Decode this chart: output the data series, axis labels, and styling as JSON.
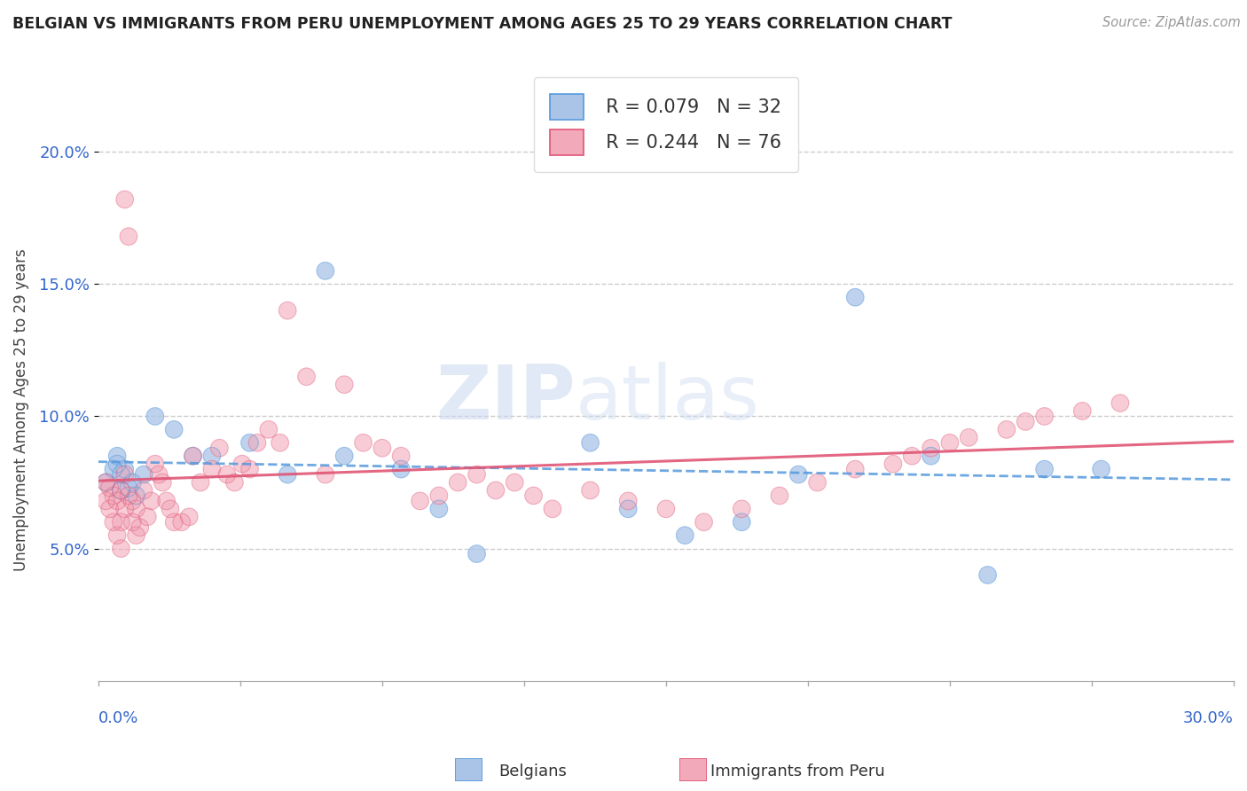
{
  "title": "BELGIAN VS IMMIGRANTS FROM PERU UNEMPLOYMENT AMONG AGES 25 TO 29 YEARS CORRELATION CHART",
  "source": "Source: ZipAtlas.com",
  "ylabel": "Unemployment Among Ages 25 to 29 years",
  "xlim": [
    0.0,
    0.3
  ],
  "ylim": [
    0.0,
    0.205
  ],
  "ytick_vals": [
    0.05,
    0.1,
    0.15,
    0.2
  ],
  "ytick_labels": [
    "5.0%",
    "10.0%",
    "15.0%",
    "20.0%"
  ],
  "legend_r1": "R = 0.079",
  "legend_n1": "N = 32",
  "legend_r2": "R = 0.244",
  "legend_n2": "N = 76",
  "legend_label1": "Belgians",
  "legend_label2": "Immigrants from Peru",
  "belgians_color": "#aac4e8",
  "peru_color": "#f2aabb",
  "trend1_color": "#5599dd",
  "trend2_color": "#e05575",
  "trend1_dashed": true,
  "trend2_dashed": false,
  "watermark_top": "ZIP",
  "watermark_bottom": "atlas",
  "belgians_x": [
    0.002,
    0.004,
    0.005,
    0.005,
    0.006,
    0.006,
    0.007,
    0.008,
    0.009,
    0.01,
    0.012,
    0.015,
    0.02,
    0.025,
    0.03,
    0.04,
    0.05,
    0.06,
    0.065,
    0.08,
    0.09,
    0.1,
    0.13,
    0.14,
    0.155,
    0.17,
    0.185,
    0.2,
    0.22,
    0.235,
    0.25,
    0.265
  ],
  "belgians_y": [
    0.075,
    0.08,
    0.082,
    0.085,
    0.078,
    0.072,
    0.08,
    0.073,
    0.075,
    0.07,
    0.078,
    0.1,
    0.095,
    0.085,
    0.085,
    0.09,
    0.078,
    0.155,
    0.085,
    0.08,
    0.065,
    0.048,
    0.09,
    0.065,
    0.055,
    0.06,
    0.078,
    0.145,
    0.085,
    0.04,
    0.08,
    0.08
  ],
  "peru_x": [
    0.002,
    0.002,
    0.003,
    0.003,
    0.004,
    0.004,
    0.005,
    0.005,
    0.006,
    0.006,
    0.006,
    0.007,
    0.007,
    0.007,
    0.008,
    0.008,
    0.009,
    0.009,
    0.01,
    0.01,
    0.011,
    0.012,
    0.013,
    0.014,
    0.015,
    0.016,
    0.017,
    0.018,
    0.019,
    0.02,
    0.022,
    0.024,
    0.025,
    0.027,
    0.03,
    0.032,
    0.034,
    0.036,
    0.038,
    0.04,
    0.042,
    0.045,
    0.048,
    0.05,
    0.055,
    0.06,
    0.065,
    0.07,
    0.075,
    0.08,
    0.085,
    0.09,
    0.095,
    0.1,
    0.105,
    0.11,
    0.115,
    0.12,
    0.13,
    0.14,
    0.15,
    0.16,
    0.17,
    0.18,
    0.19,
    0.2,
    0.21,
    0.215,
    0.22,
    0.225,
    0.23,
    0.24,
    0.245,
    0.25,
    0.26,
    0.27
  ],
  "peru_y": [
    0.075,
    0.068,
    0.073,
    0.065,
    0.07,
    0.06,
    0.068,
    0.055,
    0.072,
    0.06,
    0.05,
    0.065,
    0.078,
    0.182,
    0.168,
    0.07,
    0.068,
    0.06,
    0.065,
    0.055,
    0.058,
    0.072,
    0.062,
    0.068,
    0.082,
    0.078,
    0.075,
    0.068,
    0.065,
    0.06,
    0.06,
    0.062,
    0.085,
    0.075,
    0.08,
    0.088,
    0.078,
    0.075,
    0.082,
    0.08,
    0.09,
    0.095,
    0.09,
    0.14,
    0.115,
    0.078,
    0.112,
    0.09,
    0.088,
    0.085,
    0.068,
    0.07,
    0.075,
    0.078,
    0.072,
    0.075,
    0.07,
    0.065,
    0.072,
    0.068,
    0.065,
    0.06,
    0.065,
    0.07,
    0.075,
    0.08,
    0.082,
    0.085,
    0.088,
    0.09,
    0.092,
    0.095,
    0.098,
    0.1,
    0.102,
    0.105
  ],
  "grid_color": "#cccccc",
  "bg_color": "#ffffff"
}
